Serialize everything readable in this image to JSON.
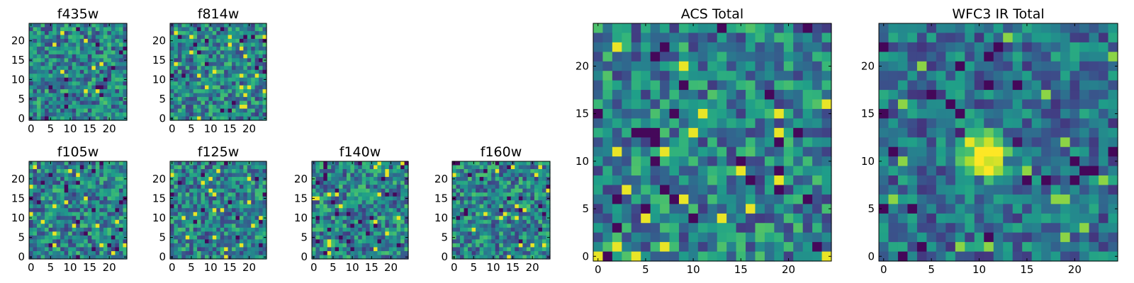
{
  "chart_data": [
    {
      "type": "heatmap",
      "title": "f435w",
      "xticks": [
        0,
        5,
        10,
        15,
        20
      ],
      "yticks": [
        0,
        5,
        10,
        15,
        20
      ],
      "xlim": [
        -0.5,
        24.5
      ],
      "ylim": [
        -0.5,
        24.5
      ],
      "grid_size": [
        25,
        25
      ],
      "colormap": "viridis",
      "pixel_values": "noise field — individual cell values not legible"
    },
    {
      "type": "heatmap",
      "title": "f814w",
      "xticks": [
        0,
        5,
        10,
        15,
        20
      ],
      "yticks": [
        0,
        5,
        10,
        15,
        20
      ],
      "xlim": [
        -0.5,
        24.5
      ],
      "ylim": [
        -0.5,
        24.5
      ],
      "grid_size": [
        25,
        25
      ],
      "colormap": "viridis",
      "pixel_values": "noise field — individual cell values not legible"
    },
    {
      "type": "heatmap",
      "title": "f105w",
      "xticks": [
        0,
        5,
        10,
        15,
        20
      ],
      "yticks": [
        0,
        5,
        10,
        15,
        20
      ],
      "xlim": [
        -0.5,
        24.5
      ],
      "ylim": [
        -0.5,
        24.5
      ],
      "grid_size": [
        25,
        25
      ],
      "colormap": "viridis",
      "pixel_values": "noise field — individual cell values not legible"
    },
    {
      "type": "heatmap",
      "title": "f125w",
      "xticks": [
        0,
        5,
        10,
        15,
        20
      ],
      "yticks": [
        0,
        5,
        10,
        15,
        20
      ],
      "xlim": [
        -0.5,
        24.5
      ],
      "ylim": [
        -0.5,
        24.5
      ],
      "grid_size": [
        25,
        25
      ],
      "colormap": "viridis",
      "pixel_values": "noise field — individual cell values not legible"
    },
    {
      "type": "heatmap",
      "title": "f140w",
      "xticks": [
        0,
        5,
        10,
        15,
        20
      ],
      "yticks": [
        0,
        5,
        10,
        15,
        20
      ],
      "xlim": [
        -0.5,
        24.5
      ],
      "ylim": [
        -0.5,
        24.5
      ],
      "grid_size": [
        25,
        25
      ],
      "colormap": "viridis",
      "pixel_values": "noise field — individual cell values not legible"
    },
    {
      "type": "heatmap",
      "title": "f160w",
      "xticks": [
        0,
        5,
        10,
        15,
        20
      ],
      "yticks": [
        0,
        5,
        10,
        15,
        20
      ],
      "xlim": [
        -0.5,
        24.5
      ],
      "ylim": [
        -0.5,
        24.5
      ],
      "grid_size": [
        25,
        25
      ],
      "colormap": "viridis",
      "pixel_values": "noise field — individual cell values not legible"
    },
    {
      "type": "heatmap",
      "title": "ACS Total",
      "xticks": [
        0,
        5,
        10,
        15,
        20
      ],
      "yticks": [
        0,
        5,
        10,
        15,
        20
      ],
      "xlim": [
        -0.5,
        24.5
      ],
      "ylim": [
        -0.5,
        24.5
      ],
      "grid_size": [
        25,
        25
      ],
      "colormap": "viridis",
      "pixel_values": "noise field — individual cell values not legible"
    },
    {
      "type": "heatmap",
      "title": "WFC3 IR Total",
      "xticks": [
        0,
        5,
        10,
        15,
        20
      ],
      "yticks": [
        0,
        5,
        10,
        15,
        20
      ],
      "xlim": [
        -0.5,
        24.5
      ],
      "ylim": [
        -0.5,
        24.5
      ],
      "grid_size": [
        25,
        25
      ],
      "colormap": "viridis",
      "pixel_values": "noise field with a bright source near x≈10, y≈11 — individual cell values not legible"
    }
  ]
}
